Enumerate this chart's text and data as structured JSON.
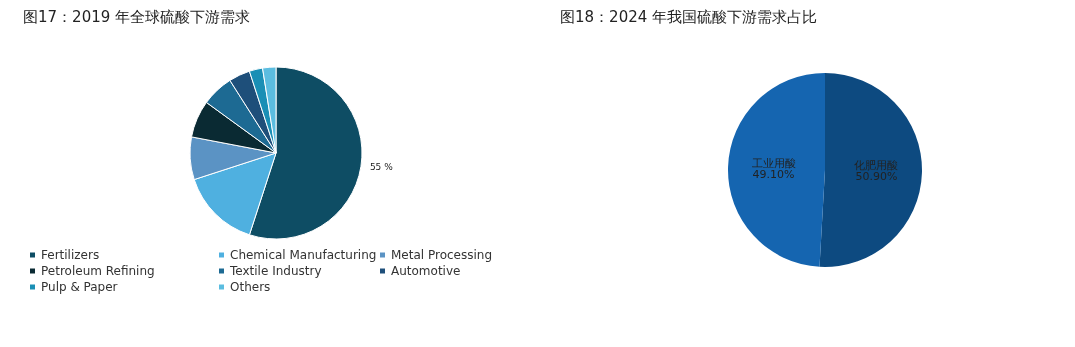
{
  "chart_data": [
    {
      "type": "pie",
      "title": "图17：2019 年全球硫酸下游需求",
      "categories": [
        "Fertilizers",
        "Chemical Manufacturing",
        "Metal Processing",
        "Petroleum Refining",
        "Textile Industry",
        "Automotive",
        "Pulp & Paper",
        "Others"
      ],
      "values": [
        55,
        15,
        8,
        7,
        6,
        4,
        2.5,
        2.5
      ],
      "colors": [
        "#0e4d64",
        "#4fb0e0",
        "#5b93c4",
        "#0a2a33",
        "#1d6a93",
        "#1e4f7a",
        "#1a8fb5",
        "#5bbde0"
      ],
      "value_labels": [
        "55 %",
        null,
        null,
        null,
        null,
        null,
        null,
        null
      ],
      "legend": "bottom"
    },
    {
      "type": "pie",
      "title": "图18：2024 年我国硫酸下游需求占比",
      "categories": [
        "化肥用酸",
        "工业用酸"
      ],
      "values": [
        50.9,
        49.1
      ],
      "colors": [
        "#0d4a80",
        "#1565b0"
      ],
      "value_labels": [
        "50.90%",
        "49.10%"
      ],
      "legend": false
    }
  ]
}
